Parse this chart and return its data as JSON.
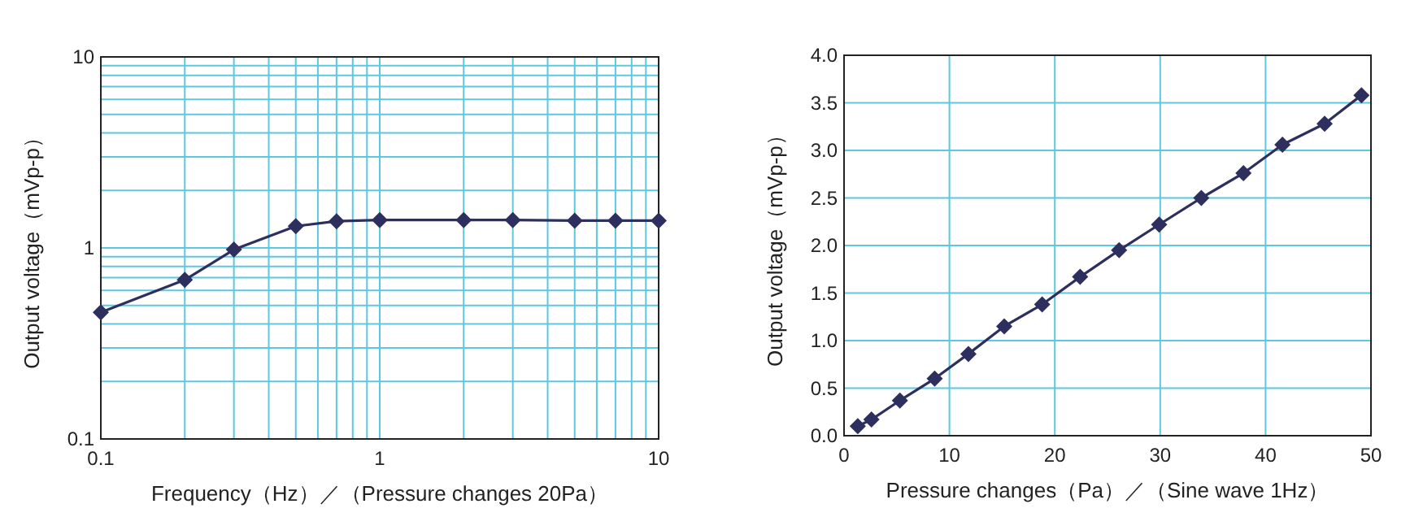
{
  "chart_data": [
    {
      "type": "line",
      "log": "xy",
      "xlabel": "Frequency（Hz）／（Pressure changes 20Pa）",
      "ylabel": "Output voltage（mVp-p）",
      "marker": "diamond",
      "grid": true,
      "xlim": [
        0.1,
        10
      ],
      "ylim": [
        0.1,
        10
      ],
      "xticks": [
        0.1,
        {
          "value": 0.2,
          "label": null
        },
        {
          "value": 0.3,
          "label": null
        },
        {
          "value": 0.4,
          "label": null
        },
        {
          "value": 0.5,
          "label": null
        },
        {
          "value": 0.6,
          "label": null
        },
        {
          "value": 0.7,
          "label": null
        },
        {
          "value": 0.8,
          "label": null
        },
        {
          "value": 0.9,
          "label": null
        },
        1,
        {
          "value": 2,
          "label": null
        },
        {
          "value": 3,
          "label": null
        },
        {
          "value": 4,
          "label": null
        },
        {
          "value": 5,
          "label": null
        },
        {
          "value": 6,
          "label": null
        },
        {
          "value": 7,
          "label": null
        },
        {
          "value": 8,
          "label": null
        },
        {
          "value": 9,
          "label": null
        },
        10
      ],
      "yticks": [
        0.1,
        {
          "value": 0.2,
          "label": null
        },
        {
          "value": 0.3,
          "label": null
        },
        {
          "value": 0.4,
          "label": null
        },
        {
          "value": 0.5,
          "label": null
        },
        {
          "value": 0.6,
          "label": null
        },
        {
          "value": 0.7,
          "label": null
        },
        {
          "value": 0.8,
          "label": null
        },
        {
          "value": 0.9,
          "label": null
        },
        1,
        {
          "value": 2,
          "label": null
        },
        {
          "value": 3,
          "label": null
        },
        {
          "value": 4,
          "label": null
        },
        {
          "value": 5,
          "label": null
        },
        {
          "value": 6,
          "label": null
        },
        {
          "value": 7,
          "label": null
        },
        {
          "value": 8,
          "label": null
        },
        {
          "value": 9,
          "label": null
        },
        10
      ],
      "x": [
        0.1,
        0.2,
        0.3,
        0.5,
        0.7,
        1,
        2,
        3,
        5,
        7,
        10
      ],
      "series": [
        {
          "color": "#2d2f5e",
          "values": [
            0.46,
            0.68,
            0.98,
            1.3,
            1.38,
            1.4,
            1.4,
            1.4,
            1.39,
            1.39,
            1.39
          ]
        }
      ]
    },
    {
      "type": "line",
      "xlabel": "Pressure changes（Pa）／（Sine wave 1Hz）",
      "ylabel": "Output voltage（mVp-p）",
      "marker": "diamond",
      "grid": true,
      "xlim": [
        0,
        50
      ],
      "ylim": [
        0,
        4
      ],
      "xticks": [
        0,
        10,
        20,
        30,
        40,
        50
      ],
      "yticks": [
        {
          "value": 0,
          "label": "0.0"
        },
        0.5,
        {
          "value": 1,
          "label": "1.0"
        },
        1.5,
        {
          "value": 2,
          "label": "2.0"
        },
        2.5,
        {
          "value": 3,
          "label": "3.0"
        },
        3.5,
        {
          "value": 4,
          "label": "4.0"
        }
      ],
      "x": [
        1.3,
        2.6,
        5.3,
        8.6,
        11.8,
        15.2,
        18.8,
        22.4,
        26.1,
        29.9,
        33.9,
        37.9,
        41.6,
        45.6,
        49.1
      ],
      "series": [
        {
          "color": "#2d2f5e",
          "values": [
            0.1,
            0.17,
            0.37,
            0.6,
            0.86,
            1.15,
            1.38,
            1.67,
            1.95,
            2.22,
            2.5,
            2.76,
            3.06,
            3.28,
            3.58
          ]
        }
      ]
    }
  ]
}
